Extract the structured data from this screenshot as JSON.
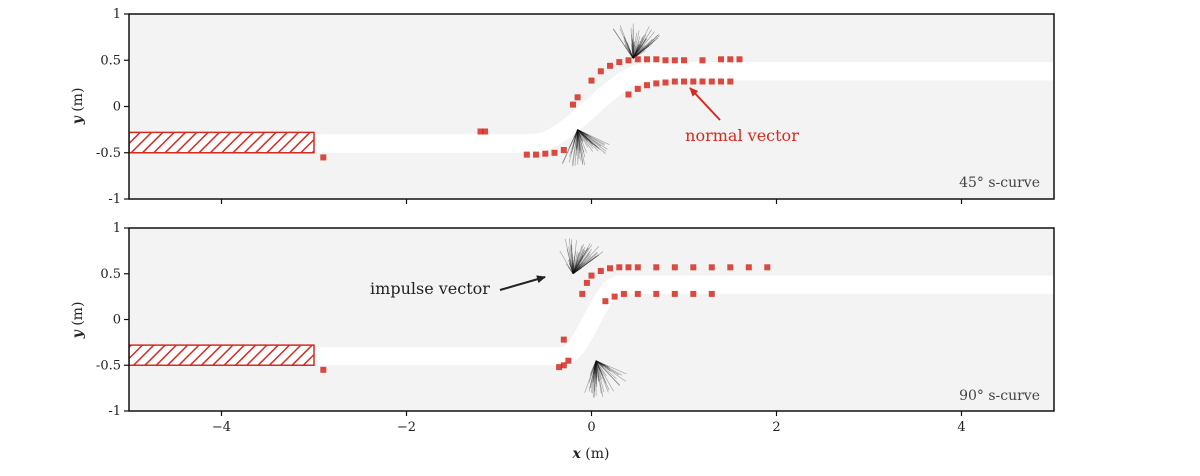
{
  "chart_data": {
    "type": "scatter",
    "x_label_var": "x",
    "x_label_unit": "(m)",
    "y_label_var": "y",
    "y_label_unit": "(m)",
    "xlim": [
      -5,
      5
    ],
    "ylim": [
      -1,
      1
    ],
    "x_ticks": [
      -4,
      -2,
      0,
      2,
      4
    ],
    "x_tick_labels": [
      "−4",
      "−2",
      "0",
      "2",
      "4"
    ],
    "y_ticks": [
      1,
      0.5,
      0,
      -0.5,
      -1
    ],
    "y_tick_labels": [
      "1",
      "0.5",
      "0",
      "-0.5",
      "-1"
    ],
    "colors": {
      "marker": "#d42a20",
      "impulse": "#111111",
      "background": "#f3f3f3",
      "path": "#ffffff"
    },
    "panels": [
      {
        "label": "45° s-curve",
        "annotation": "normal vector",
        "annotation_color": "red",
        "path": {
          "left_level": -0.4,
          "right_level": 0.38,
          "width": 0.2,
          "x_start": -3.0,
          "x_end": 5.0,
          "transition_center": 0.0,
          "transition_halfwidth": 0.65
        },
        "start_box": {
          "x": [
            -5.0,
            -3.0
          ],
          "y": [
            -0.5,
            -0.28
          ]
        },
        "upper_points": [
          [
            0.0,
            0.28
          ],
          [
            0.1,
            0.38
          ],
          [
            0.2,
            0.44
          ],
          [
            0.3,
            0.48
          ],
          [
            0.4,
            0.5
          ],
          [
            0.5,
            0.51
          ],
          [
            0.6,
            0.51
          ],
          [
            0.7,
            0.51
          ],
          [
            0.8,
            0.5
          ],
          [
            0.9,
            0.5
          ],
          [
            1.0,
            0.5
          ],
          [
            1.2,
            0.5
          ],
          [
            1.4,
            0.51
          ],
          [
            1.5,
            0.51
          ],
          [
            1.6,
            0.51
          ],
          [
            -0.15,
            0.1
          ],
          [
            -0.2,
            0.02
          ],
          [
            -1.15,
            -0.27
          ],
          [
            -1.2,
            -0.27
          ]
        ],
        "lower_points": [
          [
            -0.7,
            -0.52
          ],
          [
            -0.6,
            -0.52
          ],
          [
            -0.5,
            -0.51
          ],
          [
            -0.4,
            -0.5
          ],
          [
            -0.3,
            -0.47
          ],
          [
            0.4,
            0.13
          ],
          [
            0.5,
            0.19
          ],
          [
            0.6,
            0.23
          ],
          [
            0.7,
            0.25
          ],
          [
            0.8,
            0.26
          ],
          [
            0.9,
            0.27
          ],
          [
            1.0,
            0.27
          ],
          [
            1.1,
            0.27
          ],
          [
            1.2,
            0.27
          ],
          [
            1.3,
            0.27
          ],
          [
            1.4,
            0.27
          ],
          [
            1.5,
            0.27
          ],
          [
            -2.9,
            -0.55
          ]
        ],
        "impulse_origins": [
          [
            0.45,
            0.52
          ],
          [
            -0.15,
            -0.25
          ]
        ]
      },
      {
        "label": "90° s-curve",
        "annotation": "impulse vector",
        "annotation_color": "black",
        "path": {
          "left_level": -0.4,
          "right_level": 0.38,
          "width": 0.2,
          "x_start": -3.0,
          "x_end": 5.0,
          "transition_center": 0.0,
          "transition_halfwidth": 0.3
        },
        "start_box": {
          "x": [
            -5.0,
            -3.0
          ],
          "y": [
            -0.5,
            -0.28
          ]
        },
        "upper_points": [
          [
            -0.1,
            0.28
          ],
          [
            -0.05,
            0.4
          ],
          [
            0.0,
            0.48
          ],
          [
            0.1,
            0.53
          ],
          [
            0.2,
            0.56
          ],
          [
            0.3,
            0.57
          ],
          [
            0.4,
            0.57
          ],
          [
            0.5,
            0.57
          ],
          [
            0.7,
            0.57
          ],
          [
            0.9,
            0.57
          ],
          [
            1.1,
            0.57
          ],
          [
            1.3,
            0.57
          ],
          [
            1.5,
            0.57
          ],
          [
            1.7,
            0.57
          ],
          [
            1.9,
            0.57
          ]
        ],
        "lower_points": [
          [
            -0.35,
            -0.52
          ],
          [
            -0.3,
            -0.5
          ],
          [
            -0.25,
            -0.45
          ],
          [
            -0.3,
            -0.22
          ],
          [
            0.15,
            0.2
          ],
          [
            0.25,
            0.25
          ],
          [
            0.35,
            0.28
          ],
          [
            0.5,
            0.28
          ],
          [
            0.7,
            0.28
          ],
          [
            0.9,
            0.28
          ],
          [
            1.1,
            0.28
          ],
          [
            1.3,
            0.28
          ],
          [
            -2.9,
            -0.55
          ]
        ],
        "impulse_origins": [
          [
            -0.2,
            0.5
          ],
          [
            0.05,
            -0.45
          ]
        ]
      }
    ]
  }
}
